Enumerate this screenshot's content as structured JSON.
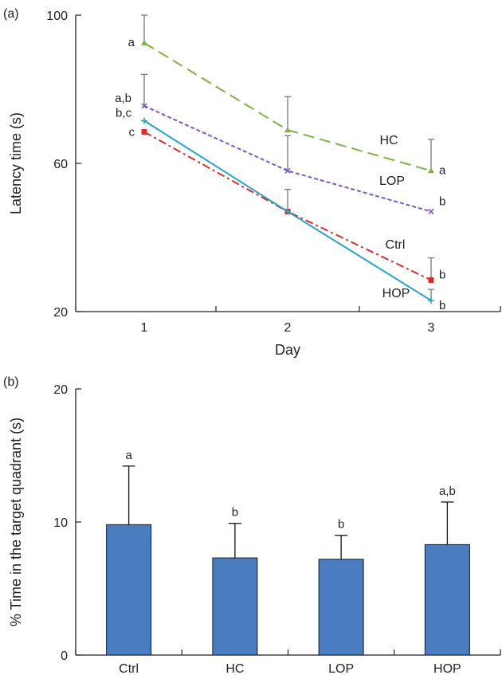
{
  "panels": {
    "a": {
      "label": "(a)"
    },
    "b": {
      "label": "(b)"
    }
  },
  "chart_data": [
    {
      "type": "line",
      "title": "",
      "xlabel": "Day",
      "ylabel": "Latency time (s)",
      "x": [
        1,
        2,
        3
      ],
      "x_tick_labels": [
        "1",
        "2",
        "3"
      ],
      "ylim": [
        20,
        100
      ],
      "y_ticks": [
        20,
        60,
        100
      ],
      "grid": false,
      "series": [
        {
          "name": "HC",
          "color": "#7cb342",
          "marker": "triangle",
          "values": [
            92.5,
            69,
            58
          ],
          "errors": [
            7.5,
            9,
            8.5
          ],
          "point_labels": [
            "a",
            "",
            "a"
          ]
        },
        {
          "name": "LOP",
          "color": "#7e57c2",
          "marker": "x",
          "values": [
            75.5,
            58,
            47
          ],
          "errors": [
            8.5,
            9.5,
            0
          ],
          "point_labels": [
            "a,b",
            "",
            "b"
          ]
        },
        {
          "name": "Ctrl",
          "color": "#d32f2f",
          "marker": "square",
          "values": [
            68.5,
            47,
            28.5
          ],
          "errors": [
            0,
            6,
            6
          ],
          "point_labels": [
            "c",
            "",
            "b"
          ]
        },
        {
          "name": "HOP",
          "color": "#29a3c9",
          "marker": "plus",
          "values": [
            71.5,
            47,
            23
          ],
          "errors": [
            0,
            0,
            3
          ],
          "point_labels": [
            "b,c",
            "",
            "b"
          ]
        }
      ]
    },
    {
      "type": "bar",
      "title": "",
      "xlabel": "",
      "ylabel": "% Time in the target quadrant (s)",
      "categories": [
        "Ctrl",
        "HC",
        "LOP",
        "HOP"
      ],
      "values": [
        9.8,
        7.3,
        7.2,
        8.3
      ],
      "errors": [
        4.4,
        2.6,
        1.8,
        3.2
      ],
      "significance": [
        "a",
        "b",
        "b",
        "a,b"
      ],
      "ylim": [
        0,
        20
      ],
      "y_ticks": [
        0,
        10,
        20
      ],
      "bar_color": "#4a7cc0",
      "grid": false
    }
  ]
}
